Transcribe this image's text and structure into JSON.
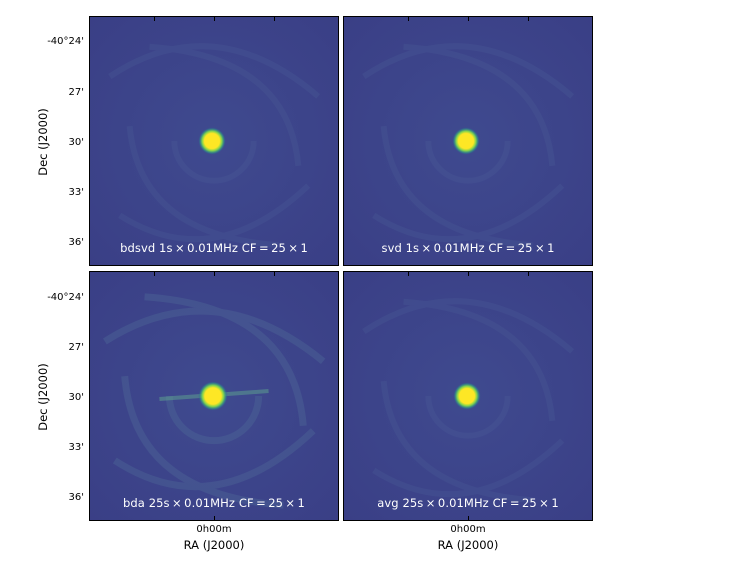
{
  "panels": [
    {
      "label": "bdsvd 1s × 0.01MHz CF = 25 × 1"
    },
    {
      "label": "svd 1s × 0.01MHz CF = 25 × 1"
    },
    {
      "label": "bda 25s × 0.01MHz CF = 25 × 1"
    },
    {
      "label": "avg 25s × 0.01MHz CF = 25 × 1"
    }
  ],
  "y_axis": {
    "title": "Dec (J2000)",
    "ticks": [
      "-40°24'",
      "27'",
      "30'",
      "33'",
      "36'"
    ]
  },
  "x_axis": {
    "title": "RA (J2000)",
    "tick": "0h00m"
  },
  "colors": {
    "background": "#3b3f88",
    "source_core": "#fde725",
    "source_halo": "#5ec962"
  }
}
